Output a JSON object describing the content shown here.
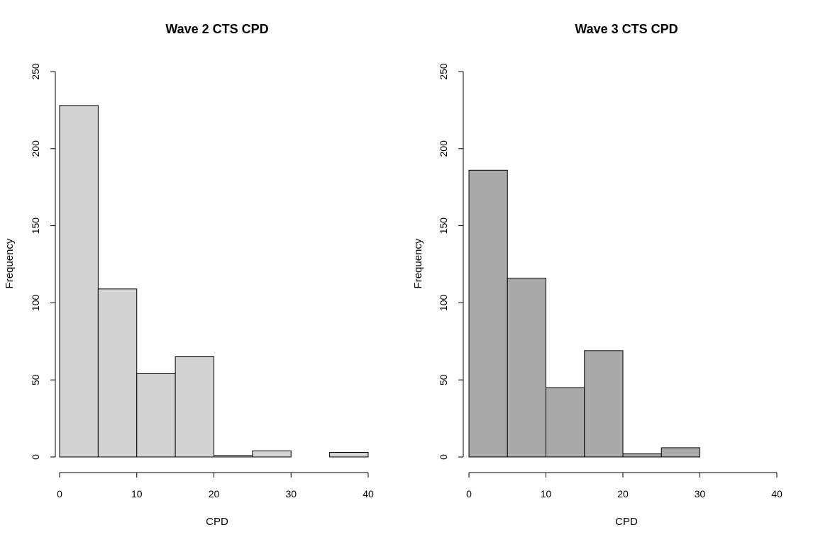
{
  "chart_data": [
    {
      "type": "bar",
      "title": "Wave 2 CTS CPD",
      "xlabel": "CPD",
      "ylabel": "Frequency",
      "bin_edges": [
        0,
        5,
        10,
        15,
        20,
        25,
        30,
        35,
        40
      ],
      "values": [
        228,
        109,
        54,
        65,
        1,
        4,
        0,
        3
      ],
      "xlim": [
        0,
        40
      ],
      "ylim": [
        0,
        250
      ],
      "x_ticks": [
        0,
        10,
        20,
        30,
        40
      ],
      "y_ticks": [
        0,
        50,
        100,
        150,
        200,
        250
      ],
      "bar_color": "#d3d3d3",
      "grid": false
    },
    {
      "type": "bar",
      "title": "Wave 3 CTS CPD",
      "xlabel": "CPD",
      "ylabel": "Frequency",
      "bin_edges": [
        0,
        5,
        10,
        15,
        20,
        25,
        30
      ],
      "values": [
        186,
        116,
        45,
        69,
        2,
        6
      ],
      "xlim": [
        0,
        40
      ],
      "ylim": [
        0,
        250
      ],
      "x_ticks": [
        0,
        10,
        20,
        30,
        40
      ],
      "y_ticks": [
        0,
        50,
        100,
        150,
        200,
        250
      ],
      "bar_color": "#a9a9a9",
      "grid": false
    }
  ]
}
